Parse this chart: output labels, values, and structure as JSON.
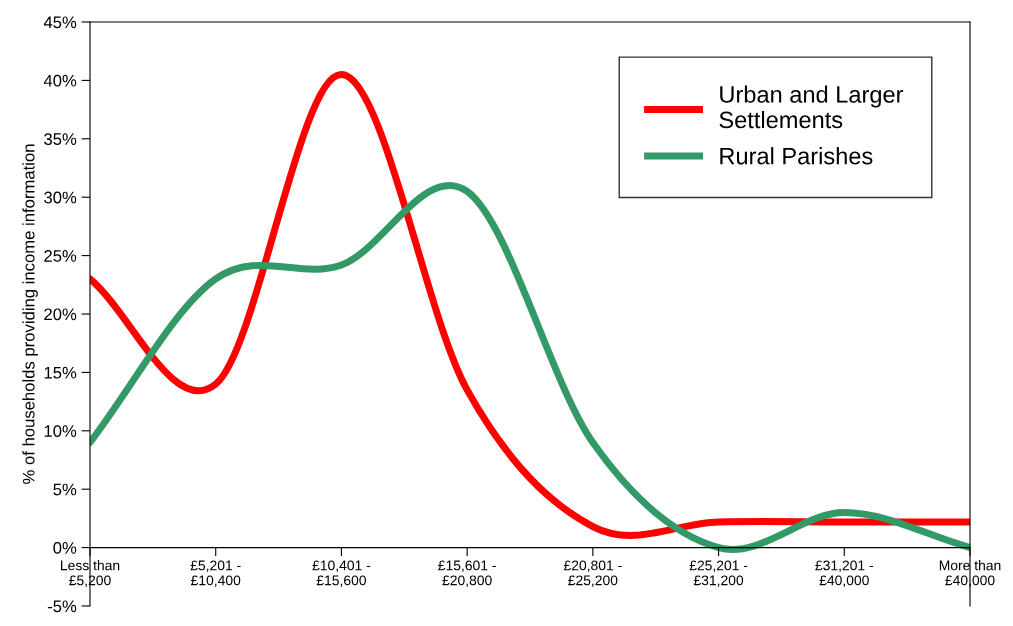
{
  "chart_data": {
    "type": "line",
    "ylabel": "% of households providing income information",
    "categories": [
      "Less than\n£5,200",
      "£5,201 -\n£10,400",
      "£10,401 -\n£15,600",
      "£15,601 -\n£20,800",
      "£20,801 -\n£25,200",
      "£25,201 -\n£31,200",
      "£31,201 -\n£40,000",
      "More than\n£40,000"
    ],
    "series": [
      {
        "name": "Urban and Larger\nSettlements",
        "color": "#ff0000",
        "values": [
          23,
          14,
          40.5,
          13.5,
          1.8,
          2.2,
          2.2,
          2.2
        ]
      },
      {
        "name": "Rural Parishes",
        "color": "#339966",
        "values": [
          9,
          23,
          24.2,
          30.5,
          9,
          0,
          3,
          0
        ]
      }
    ],
    "ylim": [
      -5,
      45
    ],
    "yticks": [
      {
        "value": -5,
        "label": "-5%"
      },
      {
        "value": 0,
        "label": "0%"
      },
      {
        "value": 5,
        "label": "5%"
      },
      {
        "value": 10,
        "label": "10%"
      },
      {
        "value": 15,
        "label": "15%"
      },
      {
        "value": 20,
        "label": "20%"
      },
      {
        "value": 25,
        "label": "25%"
      },
      {
        "value": 30,
        "label": "30%"
      },
      {
        "value": 35,
        "label": "35%"
      },
      {
        "value": 40,
        "label": "40%"
      },
      {
        "value": 45,
        "label": "45%"
      }
    ],
    "grid": false,
    "legend": "top right",
    "marker": "none",
    "line_style": "solid"
  }
}
